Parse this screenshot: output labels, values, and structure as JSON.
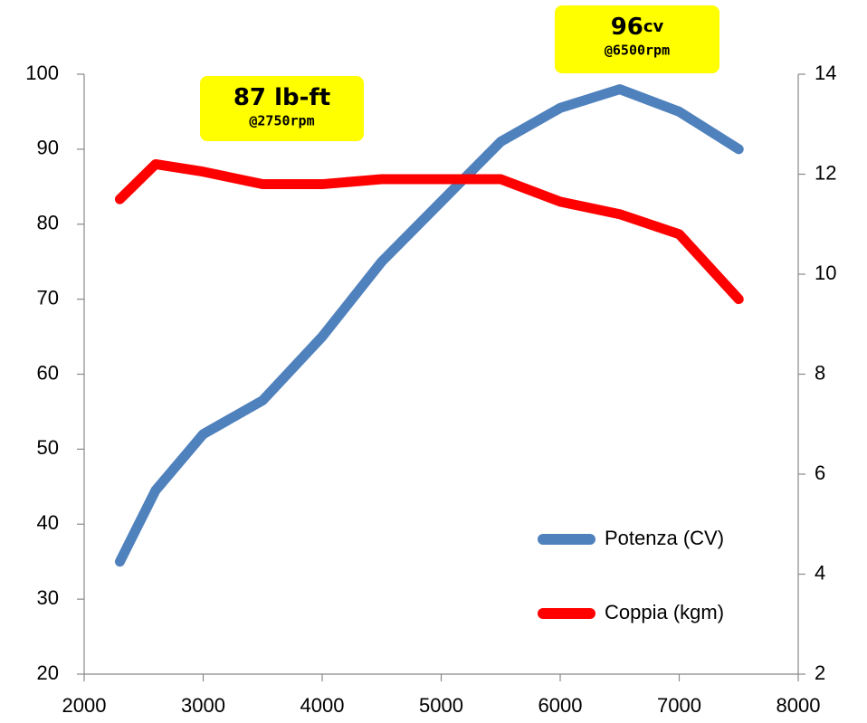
{
  "chart_data": {
    "type": "line",
    "x": [
      2300,
      2600,
      3000,
      3500,
      4000,
      4500,
      5000,
      5500,
      6000,
      6500,
      7000,
      7500
    ],
    "series": [
      {
        "name": "Potenza (CV)",
        "color": "#4f81bd",
        "values": [
          35,
          44.5,
          52,
          56.5,
          65,
          75,
          83,
          91,
          95.5,
          98,
          95,
          90
        ]
      },
      {
        "name": "Coppia (kgm)",
        "color": "#ff0000",
        "axis": "y2",
        "values": [
          11.5,
          12.2,
          12.05,
          11.8,
          11.8,
          11.9,
          11.9,
          11.9,
          11.45,
          11.2,
          10.8,
          9.5
        ]
      }
    ],
    "xlim": [
      2000,
      8000
    ],
    "xticks": [
      2000,
      3000,
      4000,
      5000,
      6000,
      7000,
      8000
    ],
    "ylim": [
      20,
      100
    ],
    "yticks": [
      20,
      30,
      40,
      50,
      60,
      70,
      80,
      90,
      100
    ],
    "y2lim": [
      2,
      14
    ],
    "y2ticks": [
      2,
      4,
      6,
      8,
      10,
      12,
      14
    ],
    "legend": "lower right",
    "annotations": [
      {
        "text": "87 lb-ft",
        "sub": "@2750rpm"
      },
      {
        "text": "96",
        "unit": "cv",
        "sub": "@6500rpm"
      }
    ]
  }
}
